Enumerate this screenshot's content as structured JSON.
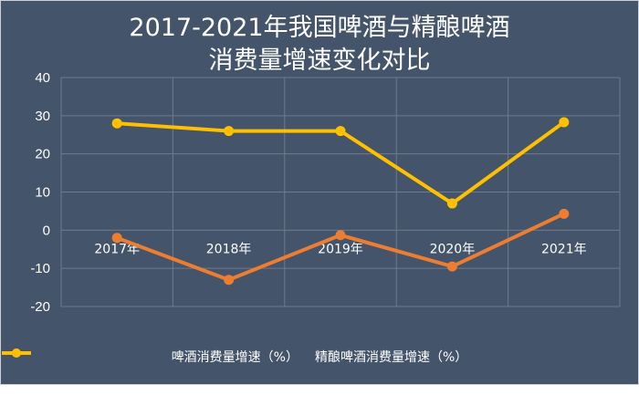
{
  "chart_data": {
    "type": "line",
    "title_line1": "2017-2021年我国啤酒与精酿啤酒",
    "title_line2": "消费量增速变化对比",
    "categories": [
      "2017年",
      "2018年",
      "2019年",
      "2020年",
      "2021年"
    ],
    "ylim": [
      -20,
      40
    ],
    "yticks": [
      "40",
      "30",
      "20",
      "10",
      "0",
      "-10",
      "-20"
    ],
    "grid": true,
    "legend_position": "bottom",
    "series": [
      {
        "name": "啤酒消费量增速（%）",
        "color": "#ed7d31",
        "values": [
          -2,
          -13,
          -1.3,
          -9.5,
          4.3
        ]
      },
      {
        "name": "精酿啤酒消费量增速（%）",
        "color": "#ffc000",
        "values": [
          28,
          26,
          26,
          7,
          28.3
        ]
      }
    ],
    "background": "#44546a",
    "gridline_color": "#6d7b8d"
  }
}
